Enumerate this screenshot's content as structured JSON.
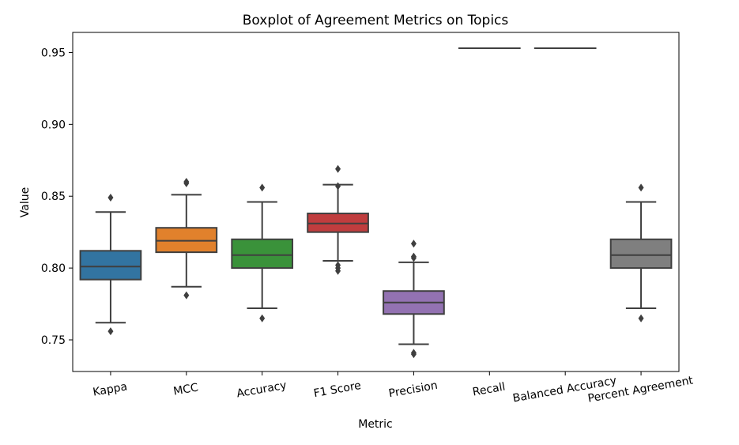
{
  "chart_data": {
    "type": "boxplot",
    "title": "Boxplot of Agreement Metrics on Topics",
    "xlabel": "Metric",
    "ylabel": "Value",
    "ylim": [
      0.728,
      0.964
    ],
    "yticks": [
      0.75,
      0.8,
      0.85,
      0.9,
      0.95
    ],
    "ytick_labels": [
      "0.75",
      "0.80",
      "0.85",
      "0.90",
      "0.95"
    ],
    "grid": false,
    "legend": "none",
    "categories": [
      "Kappa",
      "MCC",
      "Accuracy",
      "F1 Score",
      "Precision",
      "Recall",
      "Balanced Accuracy",
      "Percent Agreement"
    ],
    "boxes": [
      {
        "name": "Kappa",
        "color": "#3274a1",
        "whislo": 0.762,
        "q1": 0.792,
        "med": 0.801,
        "q3": 0.812,
        "whishi": 0.839,
        "fliers": [
          0.756,
          0.849
        ]
      },
      {
        "name": "MCC",
        "color": "#e1812c",
        "whislo": 0.787,
        "q1": 0.811,
        "med": 0.819,
        "q3": 0.828,
        "whishi": 0.851,
        "fliers": [
          0.781,
          0.859,
          0.86
        ]
      },
      {
        "name": "Accuracy",
        "color": "#3a923a",
        "whislo": 0.772,
        "q1": 0.8,
        "med": 0.809,
        "q3": 0.82,
        "whishi": 0.846,
        "fliers": [
          0.765,
          0.856
        ]
      },
      {
        "name": "F1 Score",
        "color": "#c03d3e",
        "whislo": 0.805,
        "q1": 0.825,
        "med": 0.831,
        "q3": 0.838,
        "whishi": 0.858,
        "fliers": [
          0.798,
          0.8,
          0.802,
          0.857,
          0.869
        ]
      },
      {
        "name": "Precision",
        "color": "#9372b2",
        "whislo": 0.747,
        "q1": 0.768,
        "med": 0.776,
        "q3": 0.784,
        "whishi": 0.804,
        "fliers": [
          0.74,
          0.741,
          0.807,
          0.808,
          0.817
        ]
      },
      {
        "name": "Recall",
        "color": "#845b53",
        "whislo": 0.953,
        "q1": 0.953,
        "med": 0.953,
        "q3": 0.953,
        "whishi": 0.953,
        "fliers": []
      },
      {
        "name": "Balanced Accuracy",
        "color": "#d684bd",
        "whislo": 0.953,
        "q1": 0.953,
        "med": 0.953,
        "q3": 0.953,
        "whishi": 0.953,
        "fliers": []
      },
      {
        "name": "Percent Agreement",
        "color": "#7f7f7f",
        "whislo": 0.772,
        "q1": 0.8,
        "med": 0.809,
        "q3": 0.82,
        "whishi": 0.846,
        "fliers": [
          0.765,
          0.856
        ]
      }
    ]
  }
}
